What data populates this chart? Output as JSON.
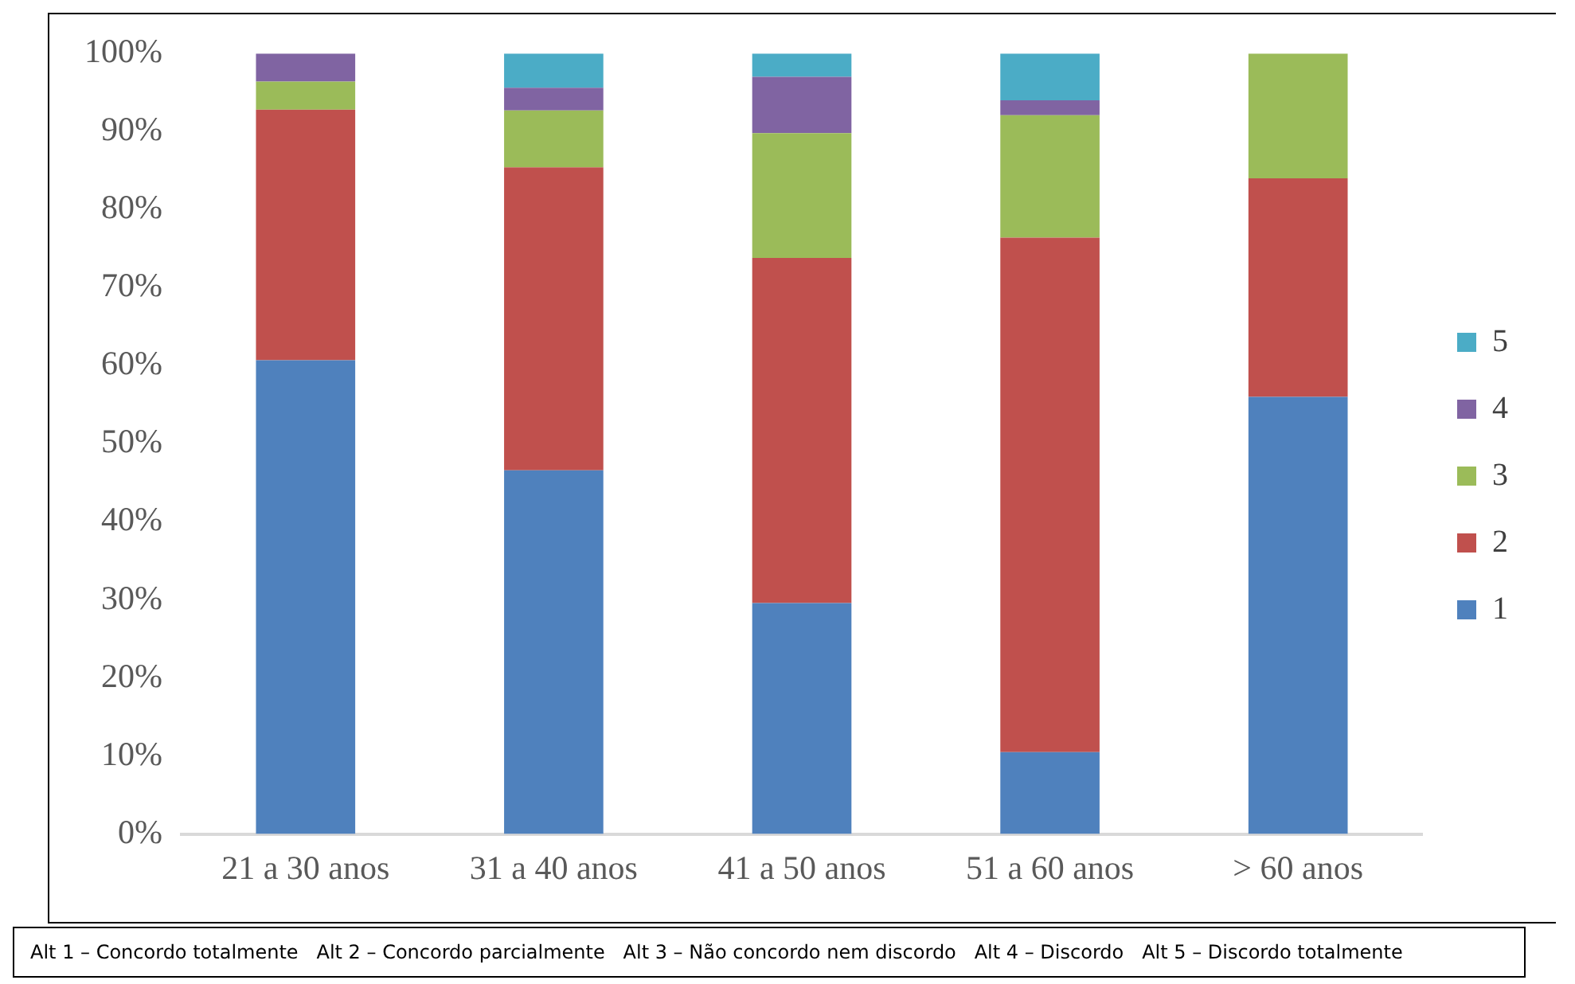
{
  "chart_data": {
    "type": "bar",
    "stacked": true,
    "categories": [
      "21 a 30 anos",
      "31 a 40 anos",
      "41 a 50 anos",
      "51 a 60 anos",
      "> 60 anos"
    ],
    "series": [
      {
        "name": "1",
        "color": "#4f81bd",
        "values": [
          60.7,
          46.6,
          29.6,
          10.5,
          56
        ]
      },
      {
        "name": "2",
        "color": "#c0504d",
        "values": [
          32.1,
          38.8,
          44.2,
          65.9,
          28
        ]
      },
      {
        "name": "3",
        "color": "#9bbb59",
        "values": [
          3.6,
          7.3,
          16,
          15.7,
          16
        ]
      },
      {
        "name": "4",
        "color": "#8064a2",
        "values": [
          3.6,
          2.9,
          7.2,
          1.9,
          0
        ]
      },
      {
        "name": "5",
        "color": "#4bacc6",
        "values": [
          0,
          4.4,
          3,
          6,
          0
        ]
      }
    ],
    "ylim": [
      0,
      100
    ],
    "yticks": [
      {
        "value": 0,
        "label": "0%"
      },
      {
        "value": 10,
        "label": "10%"
      },
      {
        "value": 20,
        "label": "20%"
      },
      {
        "value": 30,
        "label": "30%"
      },
      {
        "value": 40,
        "label": "40%"
      },
      {
        "value": 50,
        "label": "50%"
      },
      {
        "value": 60,
        "label": "60%"
      },
      {
        "value": 70,
        "label": "70%"
      },
      {
        "value": 80,
        "label": "80%"
      },
      {
        "value": 90,
        "label": "90%"
      },
      {
        "value": 100,
        "label": "100%"
      }
    ],
    "grid": false,
    "legend": "right",
    "annotations": [
      "Alt 1 – Concordo totalmente   Alt 2 – Concordo parcialmente   Alt 3 – Não concordo nem discordo   Alt 4 – Discordo   Alt 5 – Discordo totalmente"
    ]
  }
}
